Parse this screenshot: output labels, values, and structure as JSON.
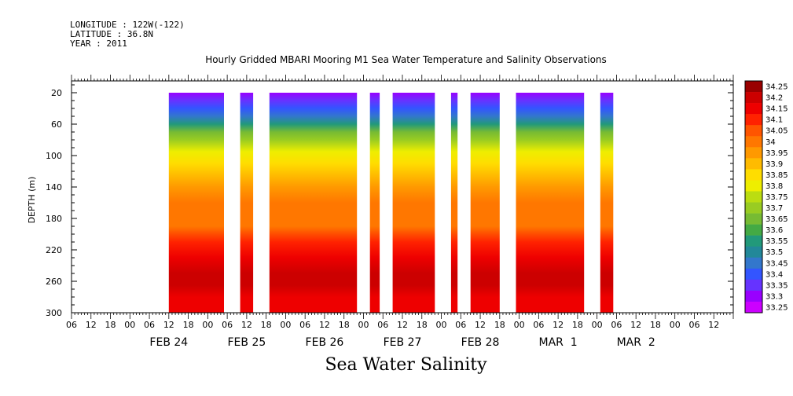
{
  "header": {
    "longitude": "LONGITUDE : 122W(-122)",
    "latitude": "LATITUDE : 36.8N",
    "year": "YEAR : 2011"
  },
  "colors": {
    "bands": [
      "#cc00ff",
      "#9900ff",
      "#6633ff",
      "#3355ff",
      "#3377cc",
      "#228899",
      "#22997a",
      "#44aa44",
      "#77bb33",
      "#99cc22",
      "#bbdd11",
      "#eeee00",
      "#ffdd00",
      "#ffbb00",
      "#ff9900",
      "#ff7700",
      "#ff5500",
      "#ff2200",
      "#ee0000",
      "#cc0000",
      "#990000"
    ],
    "gap": "#ffffff"
  },
  "chart_data": {
    "type": "heatmap",
    "title": "Hourly Gridded MBARI Mooring M1 Sea Water Temperature and Salinity Observations",
    "xlabel": "Sea Water Salinity",
    "ylabel": "DEPTH (m)",
    "xlim_hours_from_feb24_00": [
      -18,
      186
    ],
    "ylim_depth_m": [
      300,
      5
    ],
    "y_ticks": [
      20,
      60,
      100,
      140,
      180,
      220,
      260,
      300
    ],
    "hour_tick_labels": [
      "00",
      "06",
      "12",
      "18"
    ],
    "day_labels": [
      {
        "label": "FEB 24",
        "at_hour": 12
      },
      {
        "label": "FEB 25",
        "at_hour": 36
      },
      {
        "label": "FEB 26",
        "at_hour": 60
      },
      {
        "label": "FEB 27",
        "at_hour": 84
      },
      {
        "label": "FEB 28",
        "at_hour": 108
      },
      {
        "label": "MAR  1",
        "at_hour": 132
      },
      {
        "label": "MAR  2",
        "at_hour": 156
      }
    ],
    "data_segments_hours": [
      [
        12,
        29
      ],
      [
        34,
        38
      ],
      [
        43,
        70
      ],
      [
        74,
        77
      ],
      [
        81,
        94
      ],
      [
        99,
        101
      ],
      [
        105,
        114
      ],
      [
        119,
        140
      ],
      [
        145,
        149
      ]
    ],
    "data_depth_range_m": [
      20,
      300
    ],
    "colorbar_levels": [
      "34.25",
      "34.2",
      "34.15",
      "34.1",
      "34.05",
      "34",
      "33.95",
      "33.9",
      "33.85",
      "33.8",
      "33.75",
      "33.7",
      "33.65",
      "33.6",
      "33.55",
      "33.5",
      "33.45",
      "33.4",
      "33.35",
      "33.3",
      "33.25"
    ],
    "salinity_profile": [
      {
        "depth": 20,
        "value": 33.3
      },
      {
        "depth": 30,
        "value": 33.35
      },
      {
        "depth": 40,
        "value": 33.4
      },
      {
        "depth": 50,
        "value": 33.45
      },
      {
        "depth": 60,
        "value": 33.55
      },
      {
        "depth": 70,
        "value": 33.65
      },
      {
        "depth": 80,
        "value": 33.72
      },
      {
        "depth": 95,
        "value": 33.78
      },
      {
        "depth": 110,
        "value": 33.85
      },
      {
        "depth": 125,
        "value": 33.9
      },
      {
        "depth": 140,
        "value": 33.95
      },
      {
        "depth": 160,
        "value": 34.0
      },
      {
        "depth": 190,
        "value": 34.02
      },
      {
        "depth": 210,
        "value": 34.08
      },
      {
        "depth": 230,
        "value": 34.15
      },
      {
        "depth": 250,
        "value": 34.22
      },
      {
        "depth": 265,
        "value": 34.22
      },
      {
        "depth": 280,
        "value": 34.17
      },
      {
        "depth": 300,
        "value": 34.17
      }
    ]
  }
}
